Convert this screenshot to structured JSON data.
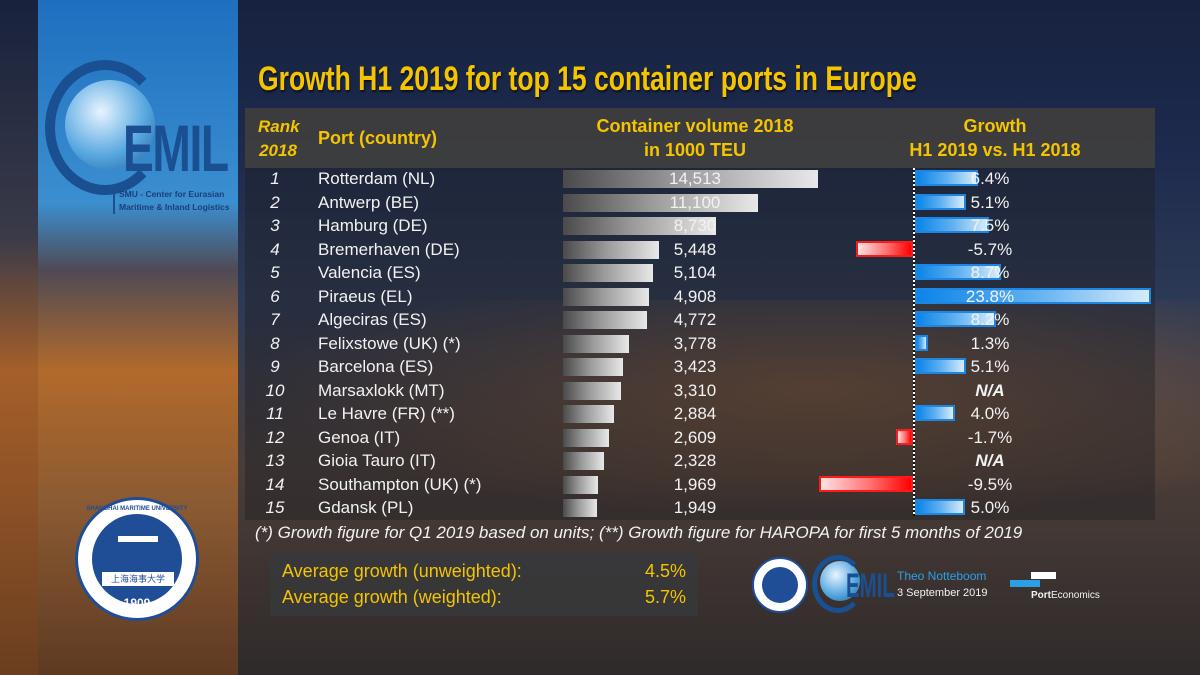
{
  "chart_data": {
    "type": "bar",
    "title": "Growth H1 2019 for top 15 container ports in Europe",
    "columns": {
      "rank": "Rank 2018",
      "port": "Port (country)",
      "volume": "Container volume 2018 in 1000 TEU",
      "growth": "Growth H1 2019 vs. H1 2018"
    },
    "headers": {
      "rank_line1": "Rank",
      "rank_line2": "2018",
      "port": "Port (country)",
      "volume_line1": "Container volume 2018",
      "volume_line2": "in 1000 TEU",
      "growth_line1": "Growth",
      "growth_line2": "H1 2019 vs. H1 2018"
    },
    "categories": [
      "Rotterdam (NL)",
      "Antwerp (BE)",
      "Hamburg (DE)",
      "Bremerhaven (DE)",
      "Valencia (ES)",
      "Piraeus (EL)",
      "Algeciras (ES)",
      "Felixstowe (UK) (*)",
      "Barcelona (ES)",
      "Marsaxlokk (MT)",
      "Le Havre (FR) (**)",
      "Genoa (IT)",
      "Gioia Tauro (IT)",
      "Southampton (UK) (*)",
      "Gdansk (PL)"
    ],
    "ranks": [
      "1",
      "2",
      "3",
      "4",
      "5",
      "6",
      "7",
      "8",
      "9",
      "10",
      "11",
      "12",
      "13",
      "14",
      "15"
    ],
    "series": [
      {
        "name": "Container volume 2018 (1000 TEU)",
        "values": [
          14513,
          11100,
          8730,
          5448,
          5104,
          4908,
          4772,
          3778,
          3423,
          3310,
          2884,
          2609,
          2328,
          1969,
          1949
        ],
        "labels": [
          "14,513",
          "11,100",
          "8,730",
          "5,448",
          "5,104",
          "4,908",
          "4,772",
          "3,778",
          "3,423",
          "3,310",
          "2,884",
          "2,609",
          "2,328",
          "1,969",
          "1,949"
        ]
      },
      {
        "name": "Growth H1 2019 vs. H1 2018 (%)",
        "values": [
          6.4,
          5.1,
          7.5,
          -5.7,
          8.7,
          23.8,
          8.2,
          1.3,
          5.1,
          null,
          4.0,
          -1.7,
          null,
          -9.5,
          5.0
        ],
        "labels": [
          "6.4%",
          "5.1%",
          "7.5%",
          "-5.7%",
          "8.7%",
          "23.8%",
          "8.2%",
          "1.3%",
          "5.1%",
          "N/A",
          "4.0%",
          "-1.7%",
          "N/A",
          "-9.5%",
          "5.0%"
        ]
      }
    ],
    "colors": {
      "positive": "#1c86e2",
      "negative": "#ff1a1a",
      "volume": "#bdbdbd",
      "accent": "#f5c400"
    }
  },
  "footnote": "(*) Growth figure for Q1 2019 based on units; (**) Growth figure for HAROPA for first 5 months of 2019",
  "averages": [
    {
      "label": "Average growth (unweighted):",
      "value": "4.5%"
    },
    {
      "label": "Average growth (weighted):",
      "value": "5.7%"
    }
  ],
  "branding": {
    "cemil_letters": "EMIL",
    "cemil_line1": "SMU -  Center for Eurasian",
    "cemil_line2": "Maritime & Inland Logistics",
    "smu_name": "SHANGHAI MARITIME UNIVERSITY",
    "smu_chinese": "上海海事大学",
    "smu_year": "1909",
    "author": "Theo Notteboom",
    "date": "3 September 2019",
    "pe_bold": "Port",
    "pe_rest": "Economics"
  }
}
